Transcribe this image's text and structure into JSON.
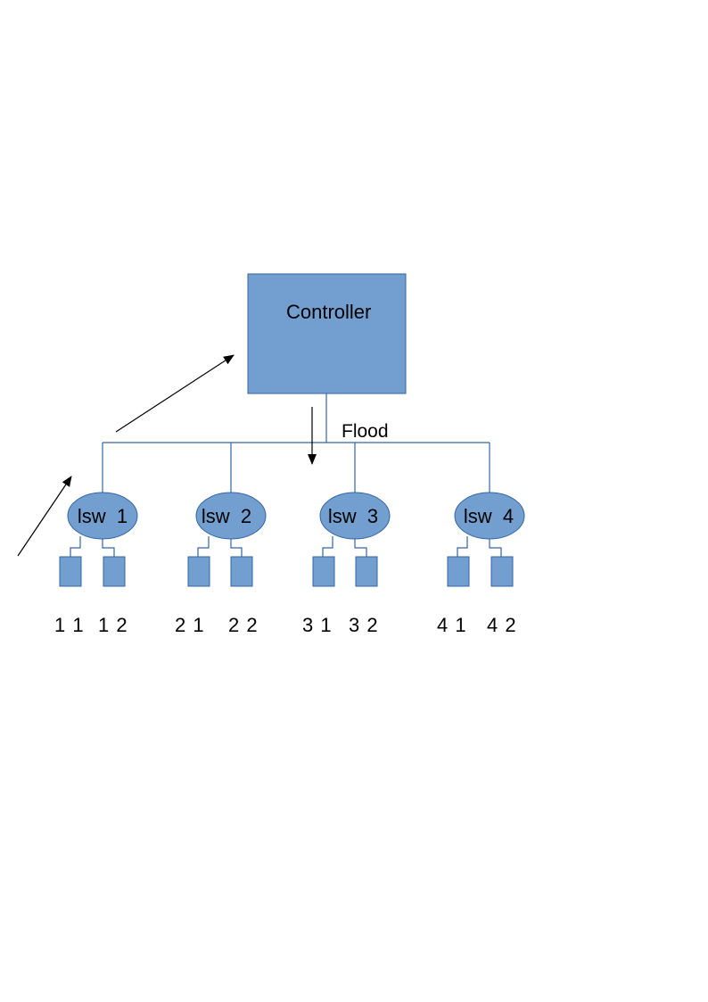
{
  "colors": {
    "fill": "#729fcf",
    "stroke": "#3465a4",
    "arrow": "#000000"
  },
  "controller": {
    "label": "Controller"
  },
  "flood": {
    "label": "Flood"
  },
  "switches": [
    {
      "label": "lsw  1",
      "hosts": [
        "1 1",
        "1 2"
      ]
    },
    {
      "label": "lsw  2",
      "hosts": [
        "2 1",
        "2 2"
      ]
    },
    {
      "label": "lsw  3",
      "hosts": [
        "3 1",
        "3 2"
      ]
    },
    {
      "label": "lsw  4",
      "hosts": [
        "4 1",
        "4 2"
      ]
    }
  ]
}
